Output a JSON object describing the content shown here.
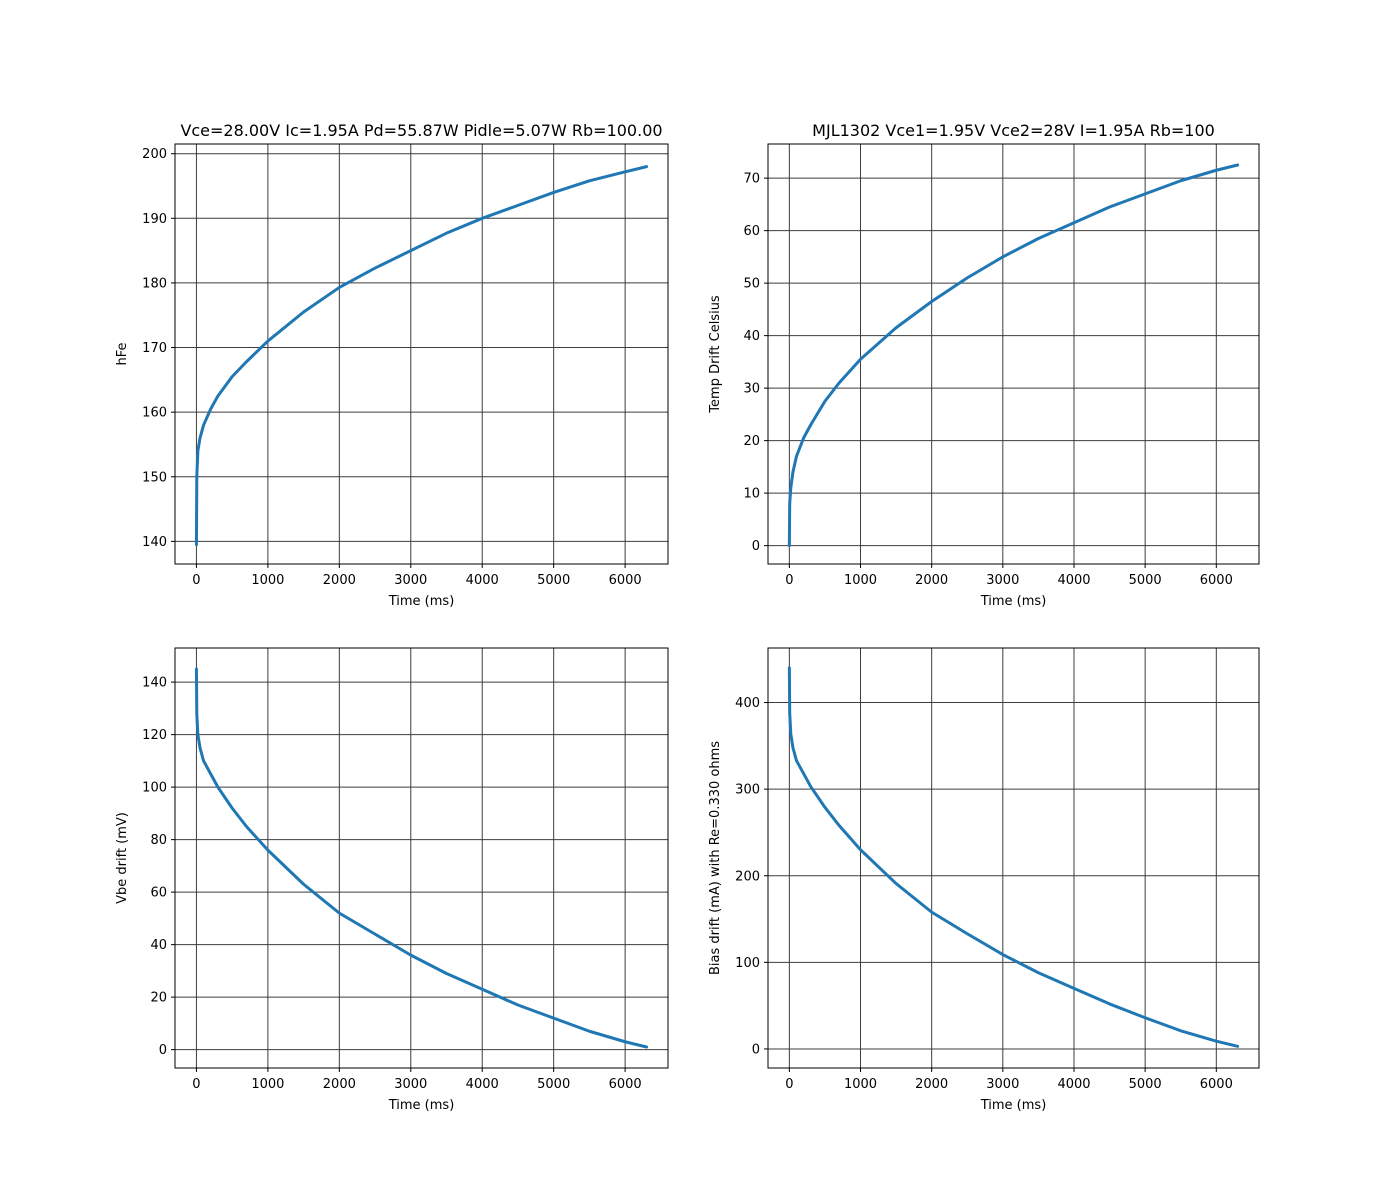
{
  "colors": {
    "line": "#1f77b4",
    "grid": "#3d3d3d",
    "frame": "#000000",
    "background": "#ffffff"
  },
  "chart_data": [
    {
      "type": "line",
      "title": "Vce=28.00V Ic=1.95A Pd=55.87W Pidle=5.07W Rb=100.00",
      "xlabel": "Time (ms)",
      "ylabel": "hFe",
      "xlim": [
        -300,
        6600
      ],
      "ylim": [
        136.5,
        201.5
      ],
      "xticks": [
        0,
        1000,
        2000,
        3000,
        4000,
        5000,
        6000
      ],
      "yticks": [
        140,
        150,
        160,
        170,
        180,
        190,
        200
      ],
      "grid": true,
      "series": [
        {
          "x": [
            0,
            5,
            20,
            50,
            100,
            200,
            300,
            500,
            700,
            1000,
            1500,
            2000,
            2500,
            3000,
            3500,
            4000,
            4500,
            5000,
            5500,
            6000,
            6300
          ],
          "y": [
            139.5,
            150,
            154,
            156,
            158,
            160.5,
            162.5,
            165.5,
            167.8,
            171,
            175.5,
            179.3,
            182.3,
            185,
            187.7,
            190,
            192,
            194,
            195.8,
            197.2,
            198
          ]
        }
      ]
    },
    {
      "type": "line",
      "title": "MJL1302 Vce1=1.95V Vce2=28V I=1.95A Rb=100",
      "xlabel": "Time (ms)",
      "ylabel": "Temp Drift Celsius",
      "xlim": [
        -300,
        6600
      ],
      "ylim": [
        -3.5,
        76.5
      ],
      "xticks": [
        0,
        1000,
        2000,
        3000,
        4000,
        5000,
        6000
      ],
      "yticks": [
        0,
        10,
        20,
        30,
        40,
        50,
        60,
        70
      ],
      "grid": true,
      "series": [
        {
          "x": [
            0,
            5,
            20,
            50,
            100,
            200,
            300,
            500,
            700,
            1000,
            1500,
            2000,
            2500,
            3000,
            3500,
            4000,
            4500,
            5000,
            5500,
            6000,
            6300
          ],
          "y": [
            0,
            8,
            11,
            14,
            17,
            20.5,
            23,
            27.5,
            31,
            35.5,
            41.5,
            46.5,
            51,
            55,
            58.5,
            61.5,
            64.5,
            67,
            69.5,
            71.5,
            72.5
          ]
        }
      ]
    },
    {
      "type": "line",
      "title": "",
      "xlabel": "Time (ms)",
      "ylabel": "Vbe drift (mV)",
      "xlim": [
        -300,
        6600
      ],
      "ylim": [
        -7,
        153
      ],
      "xticks": [
        0,
        1000,
        2000,
        3000,
        4000,
        5000,
        6000
      ],
      "yticks": [
        0,
        20,
        40,
        60,
        80,
        100,
        120,
        140
      ],
      "grid": true,
      "series": [
        {
          "x": [
            0,
            5,
            20,
            50,
            100,
            200,
            300,
            500,
            700,
            1000,
            1500,
            2000,
            2500,
            3000,
            3500,
            4000,
            4500,
            5000,
            5500,
            6000,
            6300
          ],
          "y": [
            145,
            128,
            120,
            115,
            110,
            105,
            100,
            92,
            85,
            76,
            63,
            52,
            44,
            36,
            29,
            23,
            17,
            12,
            7,
            3,
            1
          ]
        }
      ]
    },
    {
      "type": "line",
      "title": "",
      "xlabel": "Time (ms)",
      "ylabel": "Bias drift (mA) with Re=0.330 ohms",
      "xlim": [
        -300,
        6600
      ],
      "ylim": [
        -22,
        463
      ],
      "xticks": [
        0,
        1000,
        2000,
        3000,
        4000,
        5000,
        6000
      ],
      "yticks": [
        0,
        100,
        200,
        300,
        400
      ],
      "grid": true,
      "series": [
        {
          "x": [
            0,
            5,
            20,
            50,
            100,
            200,
            300,
            500,
            700,
            1000,
            1500,
            2000,
            2500,
            3000,
            3500,
            4000,
            4500,
            5000,
            5500,
            6000,
            6300
          ],
          "y": [
            440,
            388,
            364,
            348,
            333,
            318,
            303,
            279,
            258,
            230,
            191,
            158,
            133,
            109,
            88,
            70,
            52,
            36,
            21,
            9,
            3
          ]
        }
      ]
    }
  ]
}
